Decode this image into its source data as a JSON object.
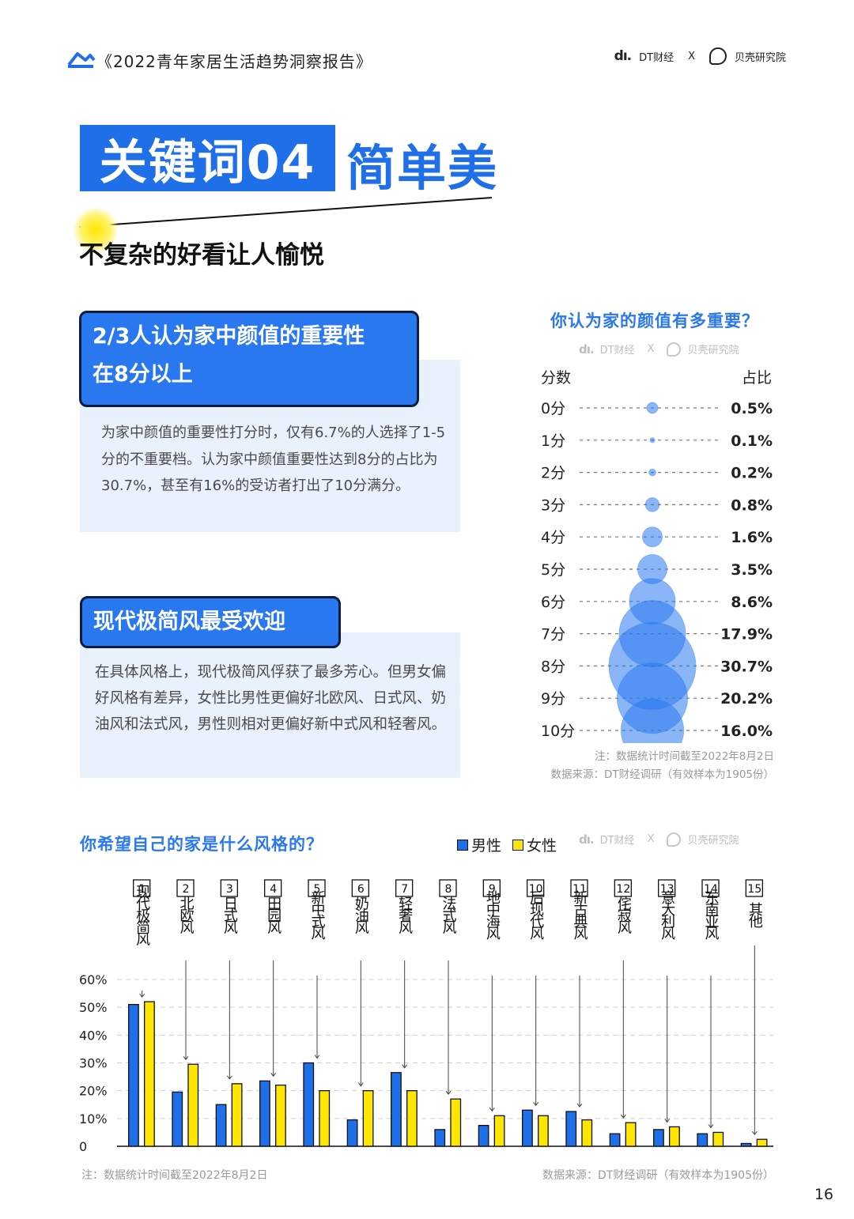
{
  "header": {
    "report_title": "《2022青年家居生活趋势洞察报告》",
    "brand_dt": "DT财经",
    "brand_x": "X",
    "brand_bk": "贝壳研究院",
    "accent": "#1f6fe8"
  },
  "keyword": {
    "label": "关键词04",
    "word": "简单美",
    "subtitle": "不复杂的好看让人愉悦"
  },
  "callout1": {
    "heading_line1": "2/3人认为家中颜值的重要性",
    "heading_line2": "在8分以上",
    "body": "为家中颜值的重要性打分时，仅有6.7%的人选择了1-5分的不重要档。认为家中颜值重要性达到8分的占比为30.7%，甚至有16%的受访者打出了10分满分。"
  },
  "callout2": {
    "heading": "现代极简风最受欢迎",
    "body": "在具体风格上，现代极简风俘获了最多芳心。但男女偏好风格有差异，女性比男性更偏好北欧风、日式风、奶油风和法式风，男性则相对更偏好新中式风和轻奢风。"
  },
  "watermark": {
    "dt": "DT财经",
    "x": "X",
    "bk": "贝壳研究院"
  },
  "chart_data": [
    {
      "type": "scatter",
      "title": "你认为家的颜值有多重要？",
      "col_left": "分数",
      "col_right": "占比",
      "categories": [
        "0分",
        "1分",
        "2分",
        "3分",
        "4分",
        "5分",
        "6分",
        "7分",
        "8分",
        "9分",
        "10分"
      ],
      "values": [
        0.5,
        0.1,
        0.2,
        0.8,
        1.6,
        3.5,
        8.6,
        17.9,
        30.7,
        20.2,
        16.0
      ],
      "value_labels": [
        "0.5%",
        "0.1%",
        "0.2%",
        "0.8%",
        "1.6%",
        "3.5%",
        "8.6%",
        "17.9%",
        "30.7%",
        "20.2%",
        "16.0%"
      ],
      "note": "注：数据统计时间截至2022年8月2日",
      "source": "数据来源：DT财经调研（有效样本为1905份）",
      "color": "#2a78ef"
    },
    {
      "type": "bar",
      "title": "你希望自己的家是什么风格的？",
      "categories": [
        "现代极简风",
        "北欧风",
        "日式风",
        "田园风",
        "新中式风",
        "奶油风",
        "轻奢风",
        "法式风",
        "地中海风",
        "后现代风",
        "新古典风",
        "侘寂风",
        "意大利风",
        "东南亚风",
        "其他"
      ],
      "category_numbers": [
        "1",
        "2",
        "3",
        "4",
        "5",
        "6",
        "7",
        "8",
        "9",
        "10",
        "11",
        "12",
        "13",
        "14",
        "15"
      ],
      "series": [
        {
          "name": "男性",
          "color": "#1f6fe8",
          "values": [
            51,
            19.5,
            15,
            23.5,
            30,
            9.5,
            26.5,
            6,
            7.5,
            13,
            12.5,
            4.5,
            6,
            4.5,
            1
          ]
        },
        {
          "name": "女性",
          "color": "#ffe600",
          "values": [
            52,
            29.5,
            22.5,
            22,
            20,
            20,
            20,
            17,
            11,
            11,
            9.5,
            8.5,
            7,
            5,
            2.5
          ]
        }
      ],
      "yticks": [
        "0",
        "10%",
        "20%",
        "30%",
        "40%",
        "50%",
        "60%"
      ],
      "ylim": [
        0,
        60
      ],
      "note": "注：数据统计时间截至2022年8月2日",
      "source": "数据来源：DT财经调研（有效样本为1905份）"
    }
  ],
  "page_number": "16"
}
